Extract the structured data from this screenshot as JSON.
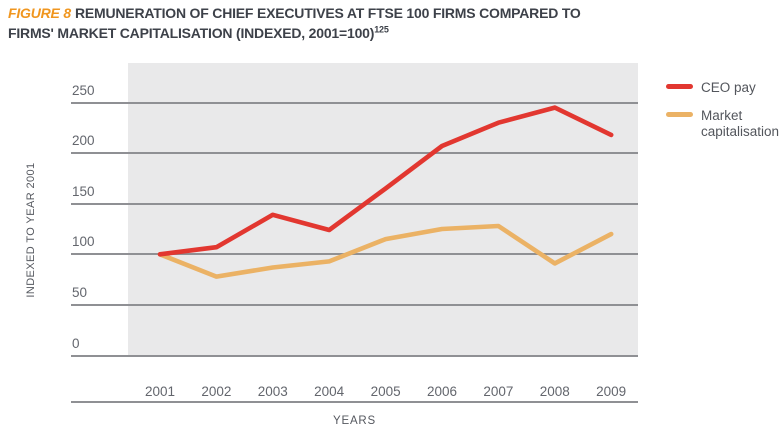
{
  "figure": {
    "label": "FIGURE 8",
    "title": "REMUNERATION OF CHIEF EXECUTIVES AT FTSE 100 FIRMS COMPARED TO FIRMS' MARKET CAPITALISATION (INDEXED, 2001=100)",
    "footnote_ref": "125"
  },
  "chart_data": {
    "type": "line",
    "x": [
      2001,
      2002,
      2003,
      2004,
      2005,
      2006,
      2007,
      2008,
      2009
    ],
    "series": [
      {
        "name": "CEO pay",
        "color": "#e23730",
        "values": [
          100,
          107,
          139,
          124,
          165,
          207,
          230,
          245,
          218
        ]
      },
      {
        "name": "Market capitalisation",
        "color": "#ebb265",
        "values": [
          100,
          78,
          87,
          93,
          115,
          125,
          128,
          91,
          120
        ]
      }
    ],
    "title": "REMUNERATION OF CHIEF EXECUTIVES AT FTSE 100 FIRMS COMPARED TO FIRMS' MARKET CAPITALISATION (INDEXED, 2001=100)",
    "xlabel": "YEARS",
    "ylabel": "INDEXED TO YEAR 2001",
    "yticks": [
      0,
      50,
      100,
      150,
      200,
      250
    ],
    "ylim": [
      0,
      290
    ],
    "grid": true,
    "legend_position": "right",
    "plot_background": "#e9e9ea",
    "gridline_color": "#8f9094"
  }
}
